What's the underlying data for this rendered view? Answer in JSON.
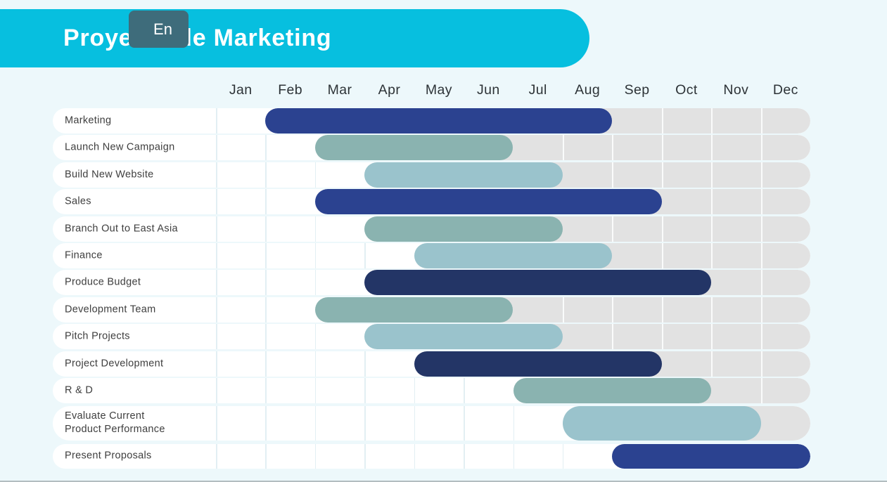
{
  "header": {
    "title": "Proyecto de Marketing",
    "language_button": "En",
    "banner_color": "#07BFDF",
    "button_color": "#3E6C7B"
  },
  "chart_data": {
    "type": "gantt",
    "title": "Proyecto de Marketing",
    "months": [
      "Jan",
      "Feb",
      "Mar",
      "Apr",
      "May",
      "Jun",
      "Jul",
      "Aug",
      "Sep",
      "Oct",
      "Nov",
      "Dec"
    ],
    "tasks": [
      {
        "label": "Marketing",
        "start": "Feb",
        "end": "Aug",
        "color": "blue"
      },
      {
        "label": "Launch New Campaign",
        "start": "Mar",
        "end": "Jun",
        "color": "sage"
      },
      {
        "label": "Build New Website",
        "start": "Apr",
        "end": "Jul",
        "color": "lightblue"
      },
      {
        "label": "Sales",
        "start": "Mar",
        "end": "Sep",
        "color": "blue"
      },
      {
        "label": "Branch Out to East Asia",
        "start": "Apr",
        "end": "Jul",
        "color": "sage"
      },
      {
        "label": "Finance",
        "start": "May",
        "end": "Aug",
        "color": "lightblue"
      },
      {
        "label": "Produce Budget",
        "start": "Apr",
        "end": "Oct",
        "color": "navy"
      },
      {
        "label": "Development Team",
        "start": "Mar",
        "end": "Jun",
        "color": "sage"
      },
      {
        "label": "Pitch Projects",
        "start": "Apr",
        "end": "Jul",
        "color": "lightblue"
      },
      {
        "label": "Project Development",
        "start": "May",
        "end": "Sep",
        "color": "navy"
      },
      {
        "label": "R & D",
        "start": "Jul",
        "end": "Oct",
        "color": "sage"
      },
      {
        "label": "Evaluate Current Product Performance",
        "label_lines": [
          "Evaluate Current",
          "Product Performance"
        ],
        "start": "Aug",
        "end": "Nov",
        "color": "lightblue"
      },
      {
        "label": "Present Proposals",
        "start": "Sep",
        "end": "Dec",
        "color": "blue"
      }
    ],
    "palette": {
      "blue": "#2B4290",
      "navy": "#233566",
      "sage": "#8AB3B0",
      "lightblue": "#9AC3CC"
    },
    "track_color": "#E2E2E2",
    "background_color": "#EDF8FB"
  }
}
